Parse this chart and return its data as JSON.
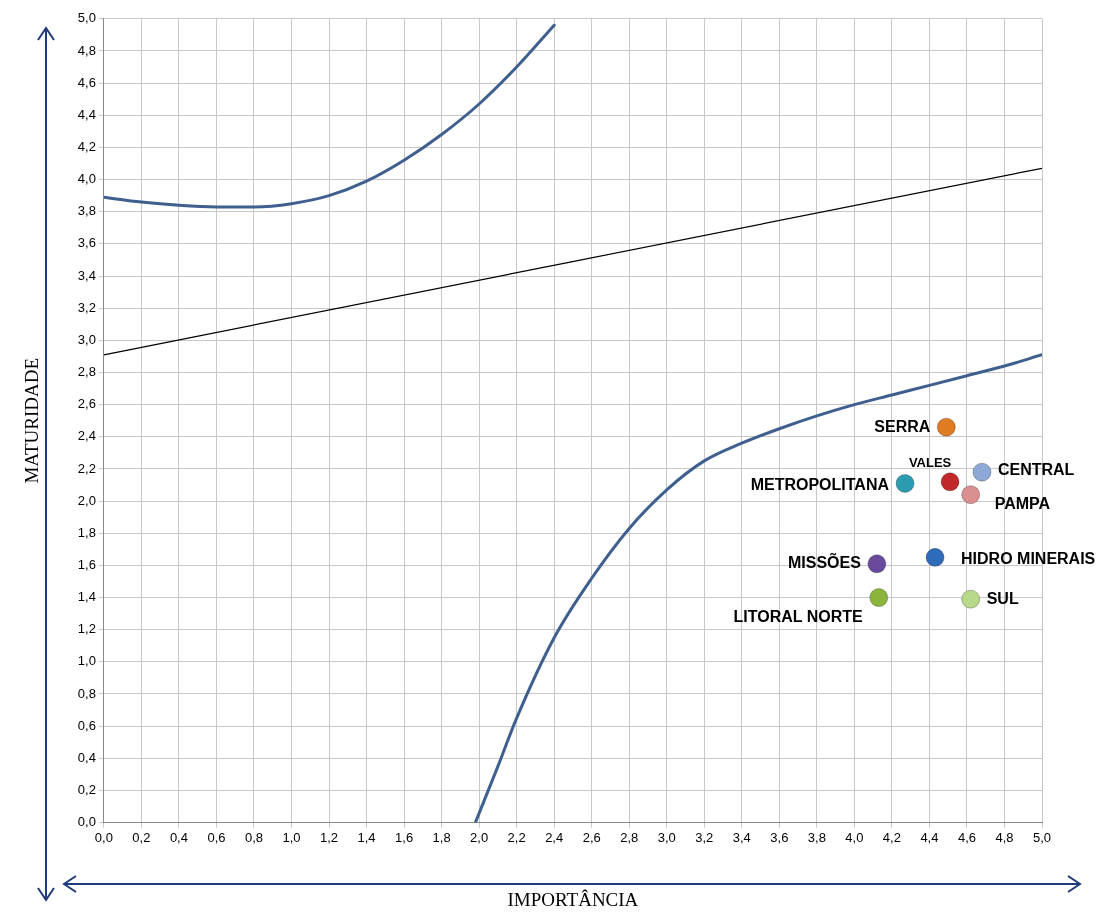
{
  "chart_data": {
    "type": "scatter",
    "xlabel": "IMPORTÂNCIA",
    "ylabel": "MATURIDADE",
    "xlim": [
      0,
      5
    ],
    "ylim": [
      0,
      5
    ],
    "xticks": [
      {
        "value": 0,
        "label": "0,0"
      },
      {
        "value": 0.2,
        "label": "0,2"
      },
      {
        "value": 0.4,
        "label": "0,4"
      },
      {
        "value": 0.6,
        "label": "0,6"
      },
      {
        "value": 0.8,
        "label": "0,8"
      },
      {
        "value": 1,
        "label": "1,0"
      },
      {
        "value": 1.2,
        "label": "1,2"
      },
      {
        "value": 1.4,
        "label": "1,4"
      },
      {
        "value": 1.6,
        "label": "1,6"
      },
      {
        "value": 1.8,
        "label": "1,8"
      },
      {
        "value": 2,
        "label": "2,0"
      },
      {
        "value": 2.2,
        "label": "2,2"
      },
      {
        "value": 2.4,
        "label": "2,4"
      },
      {
        "value": 2.6,
        "label": "2,6"
      },
      {
        "value": 2.8,
        "label": "2,8"
      },
      {
        "value": 3,
        "label": "3,0"
      },
      {
        "value": 3.2,
        "label": "3,2"
      },
      {
        "value": 3.4,
        "label": "3,4"
      },
      {
        "value": 3.6,
        "label": "3,6"
      },
      {
        "value": 3.8,
        "label": "3,8"
      },
      {
        "value": 4,
        "label": "4,0"
      },
      {
        "value": 4.2,
        "label": "4,2"
      },
      {
        "value": 4.4,
        "label": "4,4"
      },
      {
        "value": 4.6,
        "label": "4,6"
      },
      {
        "value": 4.8,
        "label": "4,8"
      },
      {
        "value": 5,
        "label": "5,0"
      }
    ],
    "yticks": [
      {
        "value": 0,
        "label": "0,0"
      },
      {
        "value": 0.2,
        "label": "0,2"
      },
      {
        "value": 0.4,
        "label": "0,4"
      },
      {
        "value": 0.6,
        "label": "0,6"
      },
      {
        "value": 0.8,
        "label": "0,8"
      },
      {
        "value": 1,
        "label": "1,0"
      },
      {
        "value": 1.2,
        "label": "1,2"
      },
      {
        "value": 1.4,
        "label": "1,4"
      },
      {
        "value": 1.6,
        "label": "1,6"
      },
      {
        "value": 1.8,
        "label": "1,8"
      },
      {
        "value": 2,
        "label": "2,0"
      },
      {
        "value": 2.2,
        "label": "2,2"
      },
      {
        "value": 2.4,
        "label": "2,4"
      },
      {
        "value": 2.6,
        "label": "2,6"
      },
      {
        "value": 2.8,
        "label": "2,8"
      },
      {
        "value": 3,
        "label": "3,0"
      },
      {
        "value": 3.2,
        "label": "3,2"
      },
      {
        "value": 3.4,
        "label": "3,4"
      },
      {
        "value": 3.6,
        "label": "3,6"
      },
      {
        "value": 3.8,
        "label": "3,8"
      },
      {
        "value": 4,
        "label": "4,0"
      },
      {
        "value": 4.2,
        "label": "4,2"
      },
      {
        "value": 4.4,
        "label": "4,4"
      },
      {
        "value": 4.6,
        "label": "4,6"
      },
      {
        "value": 4.8,
        "label": "4,8"
      },
      {
        "value": 5,
        "label": "5,0"
      }
    ],
    "grid": true,
    "legend": false,
    "series": [
      {
        "type": "line",
        "marker": "none",
        "color": "#3f5f8f",
        "x": [
          0,
          0.2,
          0.4,
          0.6,
          0.8,
          1.0,
          1.2,
          1.4,
          1.6,
          1.8,
          2.0,
          2.2,
          2.4
        ],
        "values": [
          3.89,
          3.86,
          3.84,
          3.83,
          3.83,
          3.85,
          3.9,
          3.99,
          4.12,
          4.28,
          4.47,
          4.7,
          4.96
        ]
      },
      {
        "type": "line",
        "marker": "none",
        "color": "#3f5f8f",
        "x": [
          1.98,
          2.1,
          2.2,
          2.4,
          2.6,
          2.8,
          3.0,
          3.2,
          3.4,
          3.6,
          3.8,
          4.0,
          4.2,
          4.4,
          4.6,
          4.8,
          5.0
        ],
        "values": [
          0,
          0.35,
          0.65,
          1.15,
          1.52,
          1.83,
          2.07,
          2.25,
          2.36,
          2.45,
          2.53,
          2.6,
          2.66,
          2.72,
          2.78,
          2.84,
          2.91
        ]
      },
      {
        "type": "line",
        "marker": "none",
        "color": "#000000",
        "x": [
          0,
          5
        ],
        "values": [
          2.91,
          4.07
        ]
      },
      {
        "name": "SERRA",
        "marker": "circle",
        "color": "#e07b22",
        "x": [
          4.49
        ],
        "values": [
          2.46
        ]
      },
      {
        "name": "CENTRAL",
        "marker": "circle",
        "color": "#8ea9d8",
        "x": [
          4.68
        ],
        "values": [
          2.18
        ]
      },
      {
        "name": "VALES",
        "marker": "circle",
        "color": "#c0282a",
        "x": [
          4.51
        ],
        "values": [
          2.12
        ]
      },
      {
        "name": "PAMPA",
        "marker": "circle",
        "color": "#d98f8e",
        "x": [
          4.62
        ],
        "values": [
          2.04
        ]
      },
      {
        "name": "METROPOLITANA",
        "marker": "circle",
        "color": "#2a9bb0",
        "x": [
          4.27
        ],
        "values": [
          2.11
        ]
      },
      {
        "name": "HIDRO MINERAIS",
        "marker": "circle",
        "color": "#2e6bb8",
        "x": [
          4.43
        ],
        "values": [
          1.65
        ]
      },
      {
        "name": "MISSÕES",
        "marker": "circle",
        "color": "#6a4a9c",
        "x": [
          4.12
        ],
        "values": [
          1.61
        ]
      },
      {
        "name": "LITORAL NORTE",
        "marker": "circle",
        "color": "#8ab43c",
        "x": [
          4.13
        ],
        "values": [
          1.4
        ]
      },
      {
        "name": "SUL",
        "marker": "circle",
        "color": "#b8d88a",
        "x": [
          4.62
        ],
        "values": [
          1.39
        ]
      }
    ]
  }
}
